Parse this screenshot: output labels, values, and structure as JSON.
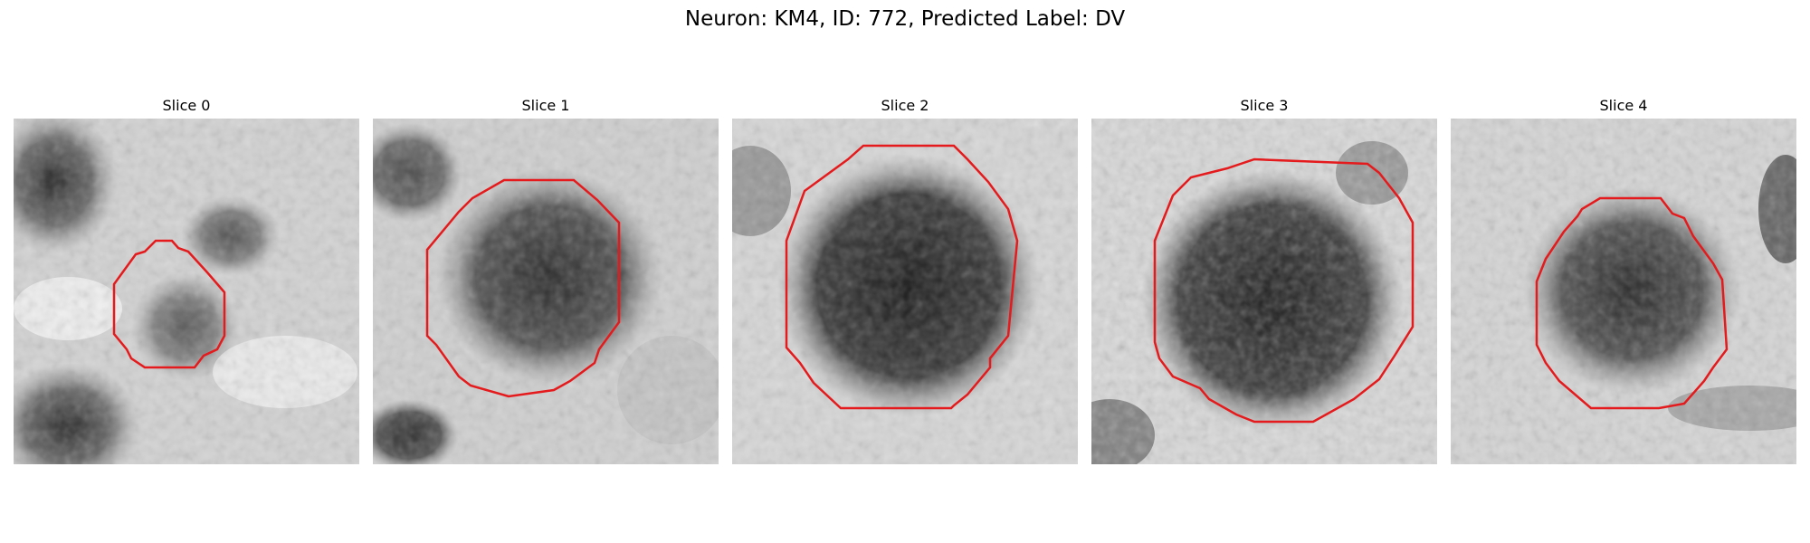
{
  "figure": {
    "title": "Neuron: KM4, ID: 772, Predicted Label: DV"
  },
  "panels": [
    {
      "title": "Slice 0",
      "outline_color": "#e41a1c"
    },
    {
      "title": "Slice 1",
      "outline_color": "#e41a1c"
    },
    {
      "title": "Slice 2",
      "outline_color": "#e41a1c"
    },
    {
      "title": "Slice 3",
      "outline_color": "#e41a1c"
    },
    {
      "title": "Slice 4",
      "outline_color": "#e41a1c"
    }
  ]
}
